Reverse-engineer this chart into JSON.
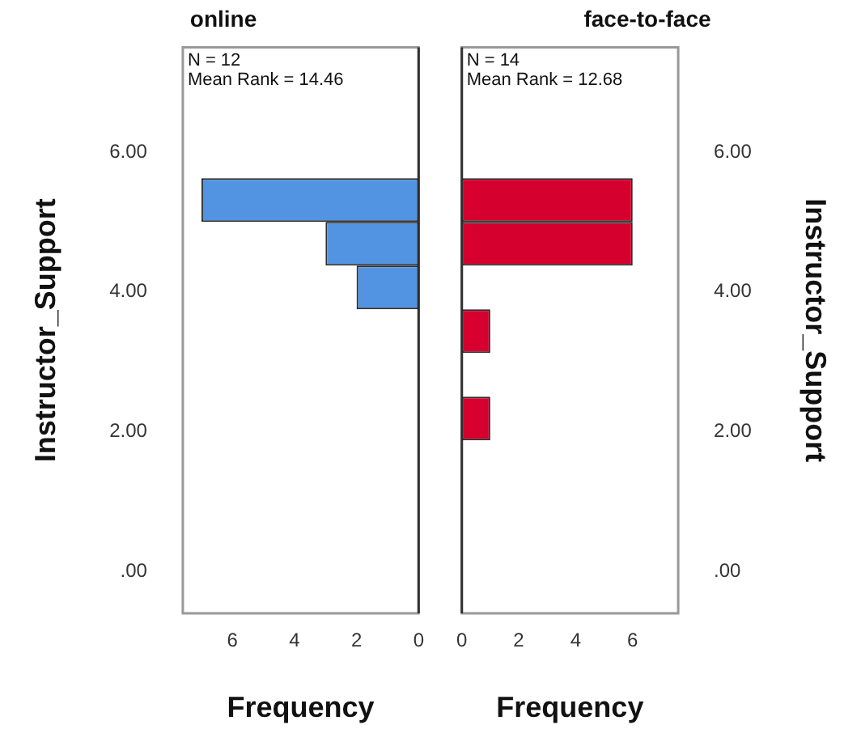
{
  "chart_data": [
    {
      "type": "histogram",
      "orientation": "horizontal",
      "title": "online",
      "xlabel": "Frequency",
      "ylabel": "Instructor_Support",
      "bins": [
        1.875,
        2.5,
        3.125,
        3.75,
        4.375,
        5,
        5.625
      ],
      "values": [
        0,
        0,
        0,
        2,
        3,
        7
      ],
      "color": "#5294e2",
      "xlim": [
        7.6,
        0
      ],
      "xticks": [
        6,
        4,
        2,
        0
      ],
      "ylim": [
        -0.6,
        7.5
      ],
      "yticks": [
        {
          "value": 0,
          "label": ".00"
        },
        {
          "value": 2,
          "label": "2.00"
        },
        {
          "value": 4,
          "label": "4.00"
        },
        {
          "value": 6,
          "label": "6.00"
        }
      ],
      "annotations": [
        "N = 12",
        "Mean Rank = 14.46"
      ],
      "grid": false,
      "legend": false
    },
    {
      "type": "histogram",
      "orientation": "horizontal",
      "title": "face-to-face",
      "xlabel": "Frequency",
      "ylabel": "Instructor_Support",
      "bins": [
        1.875,
        2.5,
        3.125,
        3.75,
        4.375,
        5,
        5.625
      ],
      "values": [
        1,
        0,
        1,
        0,
        6,
        6
      ],
      "color": "#d5002e",
      "xlim": [
        0,
        7.6
      ],
      "xticks": [
        0,
        2,
        4,
        6
      ],
      "ylim": [
        -0.6,
        7.5
      ],
      "yticks": [
        {
          "value": 0,
          "label": ".00"
        },
        {
          "value": 2,
          "label": "2.00"
        },
        {
          "value": 4,
          "label": "4.00"
        },
        {
          "value": 6,
          "label": "6.00"
        }
      ],
      "annotations": [
        "N = 14",
        "Mean Rank = 12.68"
      ],
      "grid": false,
      "legend": false
    }
  ]
}
